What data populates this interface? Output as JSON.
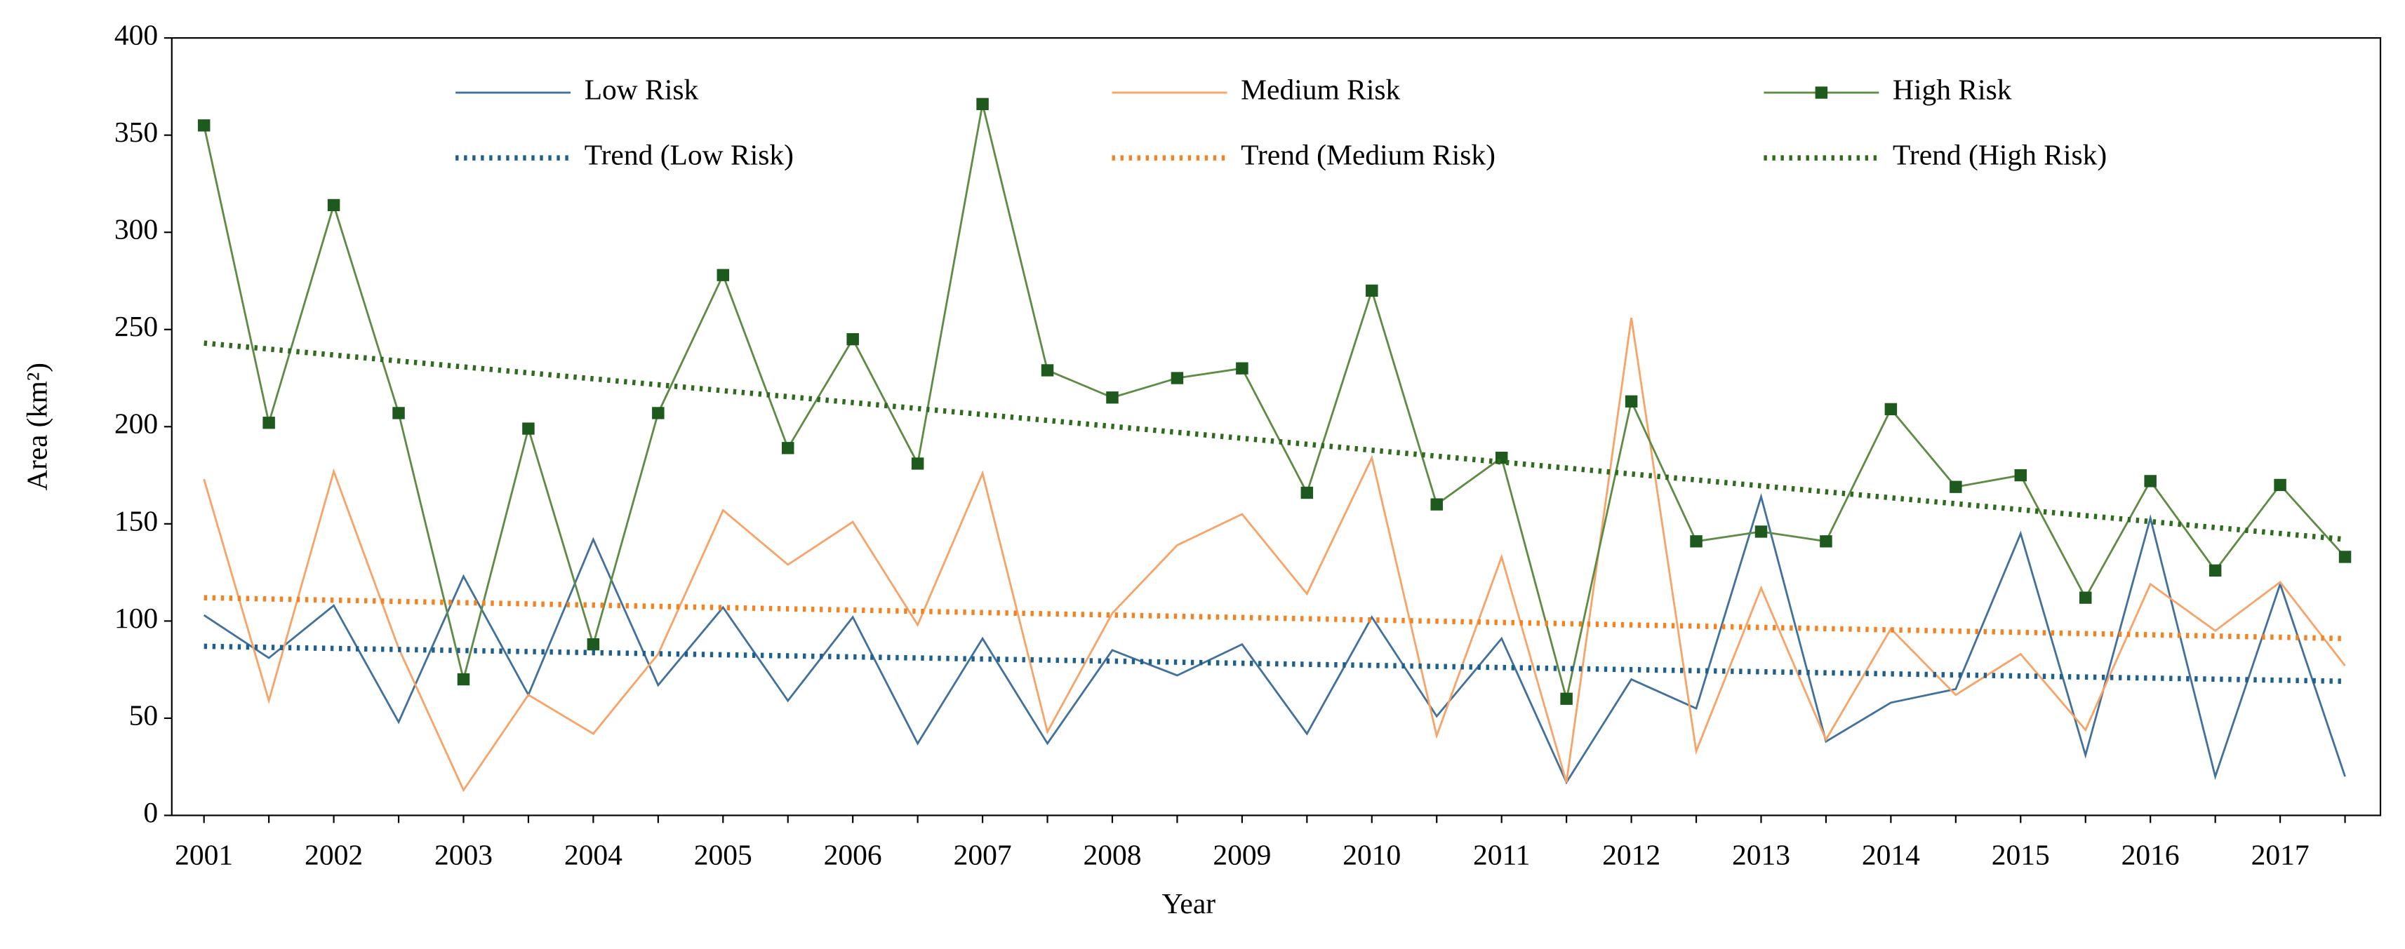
{
  "chart_data": {
    "type": "line",
    "x_label": "Year",
    "y_label": "Area (km²)",
    "categories": [
      "2001",
      null,
      "2002",
      null,
      "2003",
      null,
      "2004",
      null,
      "2005",
      null,
      "2006",
      null,
      "2007",
      null,
      "2008",
      null,
      "2009",
      null,
      "2010",
      null,
      "2011",
      null,
      "2012",
      null,
      "2013",
      null,
      "2014",
      null,
      "2015",
      null,
      "2016",
      null,
      "2017",
      null
    ],
    "ylim": [
      0,
      400
    ],
    "yticks": [
      0,
      50,
      100,
      150,
      200,
      250,
      300,
      350,
      400
    ],
    "series": [
      {
        "name": "Low Risk",
        "color": "#41719c",
        "values": [
          103,
          81,
          108,
          48,
          123,
          62,
          142,
          67,
          107,
          59,
          102,
          37,
          91,
          37,
          85,
          72,
          88,
          42,
          102,
          51,
          91,
          17,
          70,
          55,
          164,
          38,
          58,
          65,
          145,
          31,
          153,
          20,
          119,
          20
        ]
      },
      {
        "name": "Medium Risk",
        "color": "#f7a469",
        "values": [
          173,
          59,
          177,
          86,
          13,
          62,
          42,
          83,
          157,
          129,
          151,
          98,
          176,
          43,
          104,
          139,
          155,
          114,
          184,
          41,
          133,
          17,
          256,
          33,
          117,
          39,
          96,
          62,
          83,
          44,
          119,
          95,
          120,
          77
        ]
      },
      {
        "name": "High Risk",
        "color": "#5e8c45",
        "marker_color": "#1e5a1e",
        "values": [
          355,
          202,
          314,
          207,
          70,
          199,
          88,
          207,
          278,
          189,
          245,
          181,
          366,
          229,
          215,
          225,
          230,
          166,
          270,
          160,
          184,
          60,
          213,
          141,
          146,
          141,
          209,
          169,
          175,
          112,
          172,
          126,
          170,
          133
        ]
      }
    ],
    "trendlines": [
      {
        "name": "Trend (Low Risk)",
        "color": "#1f5f8b",
        "from": 87,
        "to": 69
      },
      {
        "name": "Trend (Medium Risk)",
        "color": "#f58220",
        "from": 112,
        "to": 91
      },
      {
        "name": "Trend (High Risk)",
        "color": "#2e6b1f",
        "from": 243,
        "to": 142
      }
    ]
  }
}
